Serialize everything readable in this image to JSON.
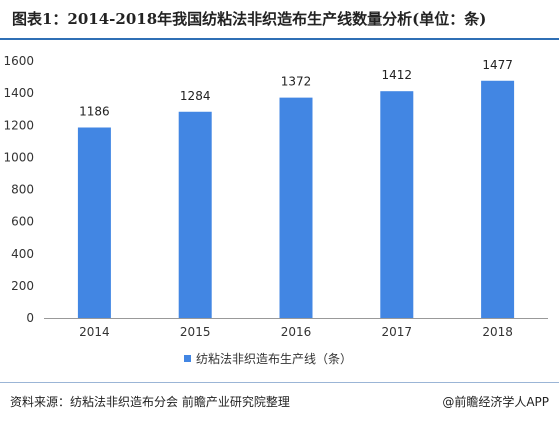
{
  "title": "图表1：2014-2018年我国纺粘法非织造布生产线数量分析(单位：条)",
  "footer": {
    "source": "资料来源：纺粘法非织造布分会 前瞻产业研究院整理",
    "brand": "@前瞻经济学人APP"
  },
  "colors": {
    "bar": "#4286e3",
    "title_rule": "#2f6fb5",
    "axis": "#999999"
  },
  "chart_data": {
    "type": "bar",
    "categories": [
      "2014",
      "2015",
      "2016",
      "2017",
      "2018"
    ],
    "series": [
      {
        "name": "纺粘法非织造布生产线（条）",
        "values": [
          1186,
          1284,
          1372,
          1412,
          1477
        ]
      }
    ],
    "ylim": [
      0,
      1600
    ],
    "yticks": [
      0,
      200,
      400,
      600,
      800,
      1000,
      1200,
      1400,
      1600
    ],
    "grid": false,
    "legend": "bottom-center",
    "data_labels": true
  }
}
